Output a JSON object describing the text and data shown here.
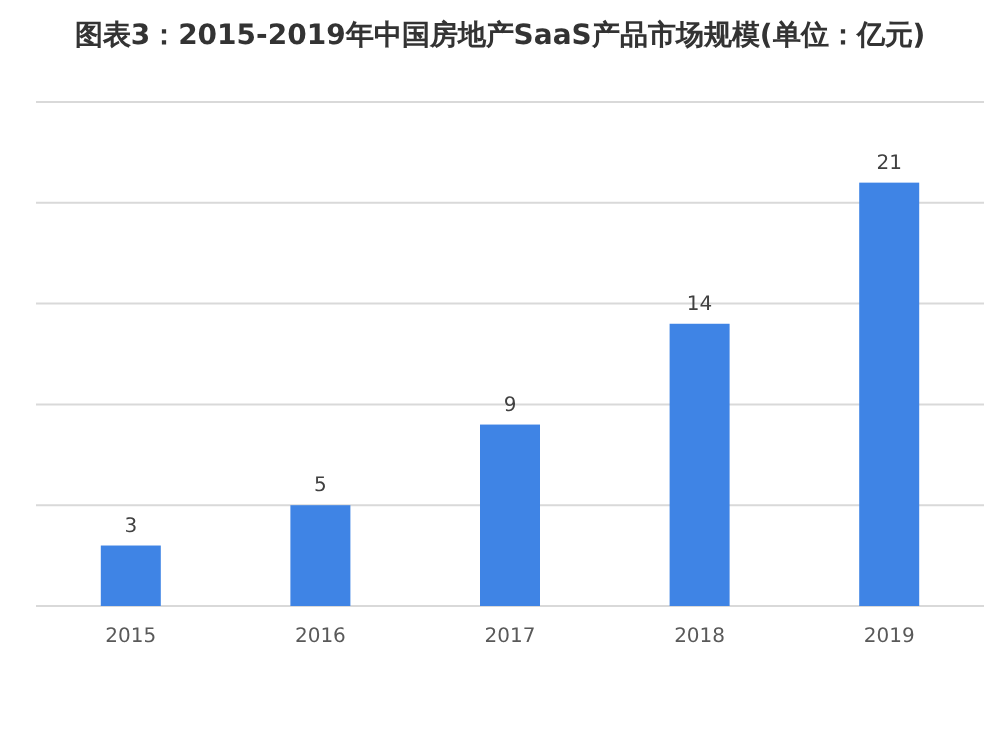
{
  "chart_data": {
    "type": "bar",
    "title": "图表3：2015-2019年中国房地产SaaS产品市场规模(单位：亿元)",
    "categories": [
      "2015",
      "2016",
      "2017",
      "2018",
      "2019"
    ],
    "values": [
      3,
      5,
      9,
      14,
      21
    ],
    "color": "#3f84e5",
    "ylim": [
      0,
      25
    ],
    "yticks": [
      {
        "value": 0,
        "label": null
      },
      {
        "value": 5,
        "label": null
      },
      {
        "value": 10,
        "label": null
      },
      {
        "value": 15,
        "label": null
      },
      {
        "value": 20,
        "label": null
      },
      {
        "value": 25,
        "label": null
      }
    ],
    "grid": "y",
    "data_labels": true
  }
}
